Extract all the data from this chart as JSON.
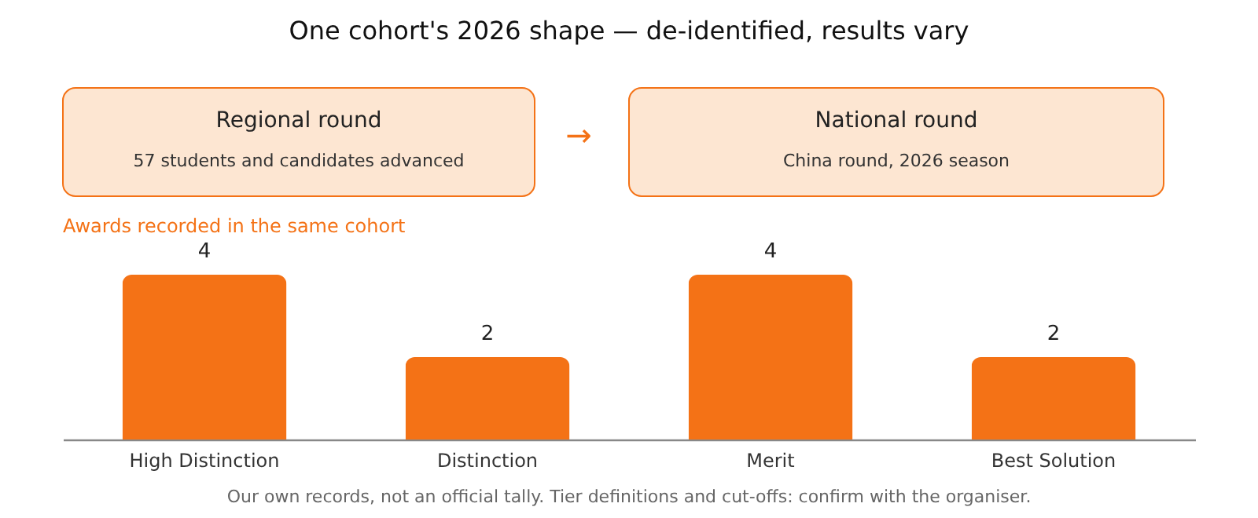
{
  "chart_data": {
    "type": "bar",
    "title": "One cohort's 2026 shape — de-identified, results vary",
    "subtitle": "Awards recorded in the same cohort",
    "categories": [
      "High Distinction",
      "Distinction",
      "Merit",
      "Best Solution"
    ],
    "values": [
      4,
      2,
      4,
      2
    ],
    "color": "#f47216",
    "data_labels": true,
    "grid": false,
    "annotations": [
      "Regional round",
      "57 students and candidates advanced",
      "→",
      "National round",
      "China round, 2026 season",
      "Our own records, not an official tally. Tier definitions and cut-offs: confirm with the organiser."
    ]
  }
}
